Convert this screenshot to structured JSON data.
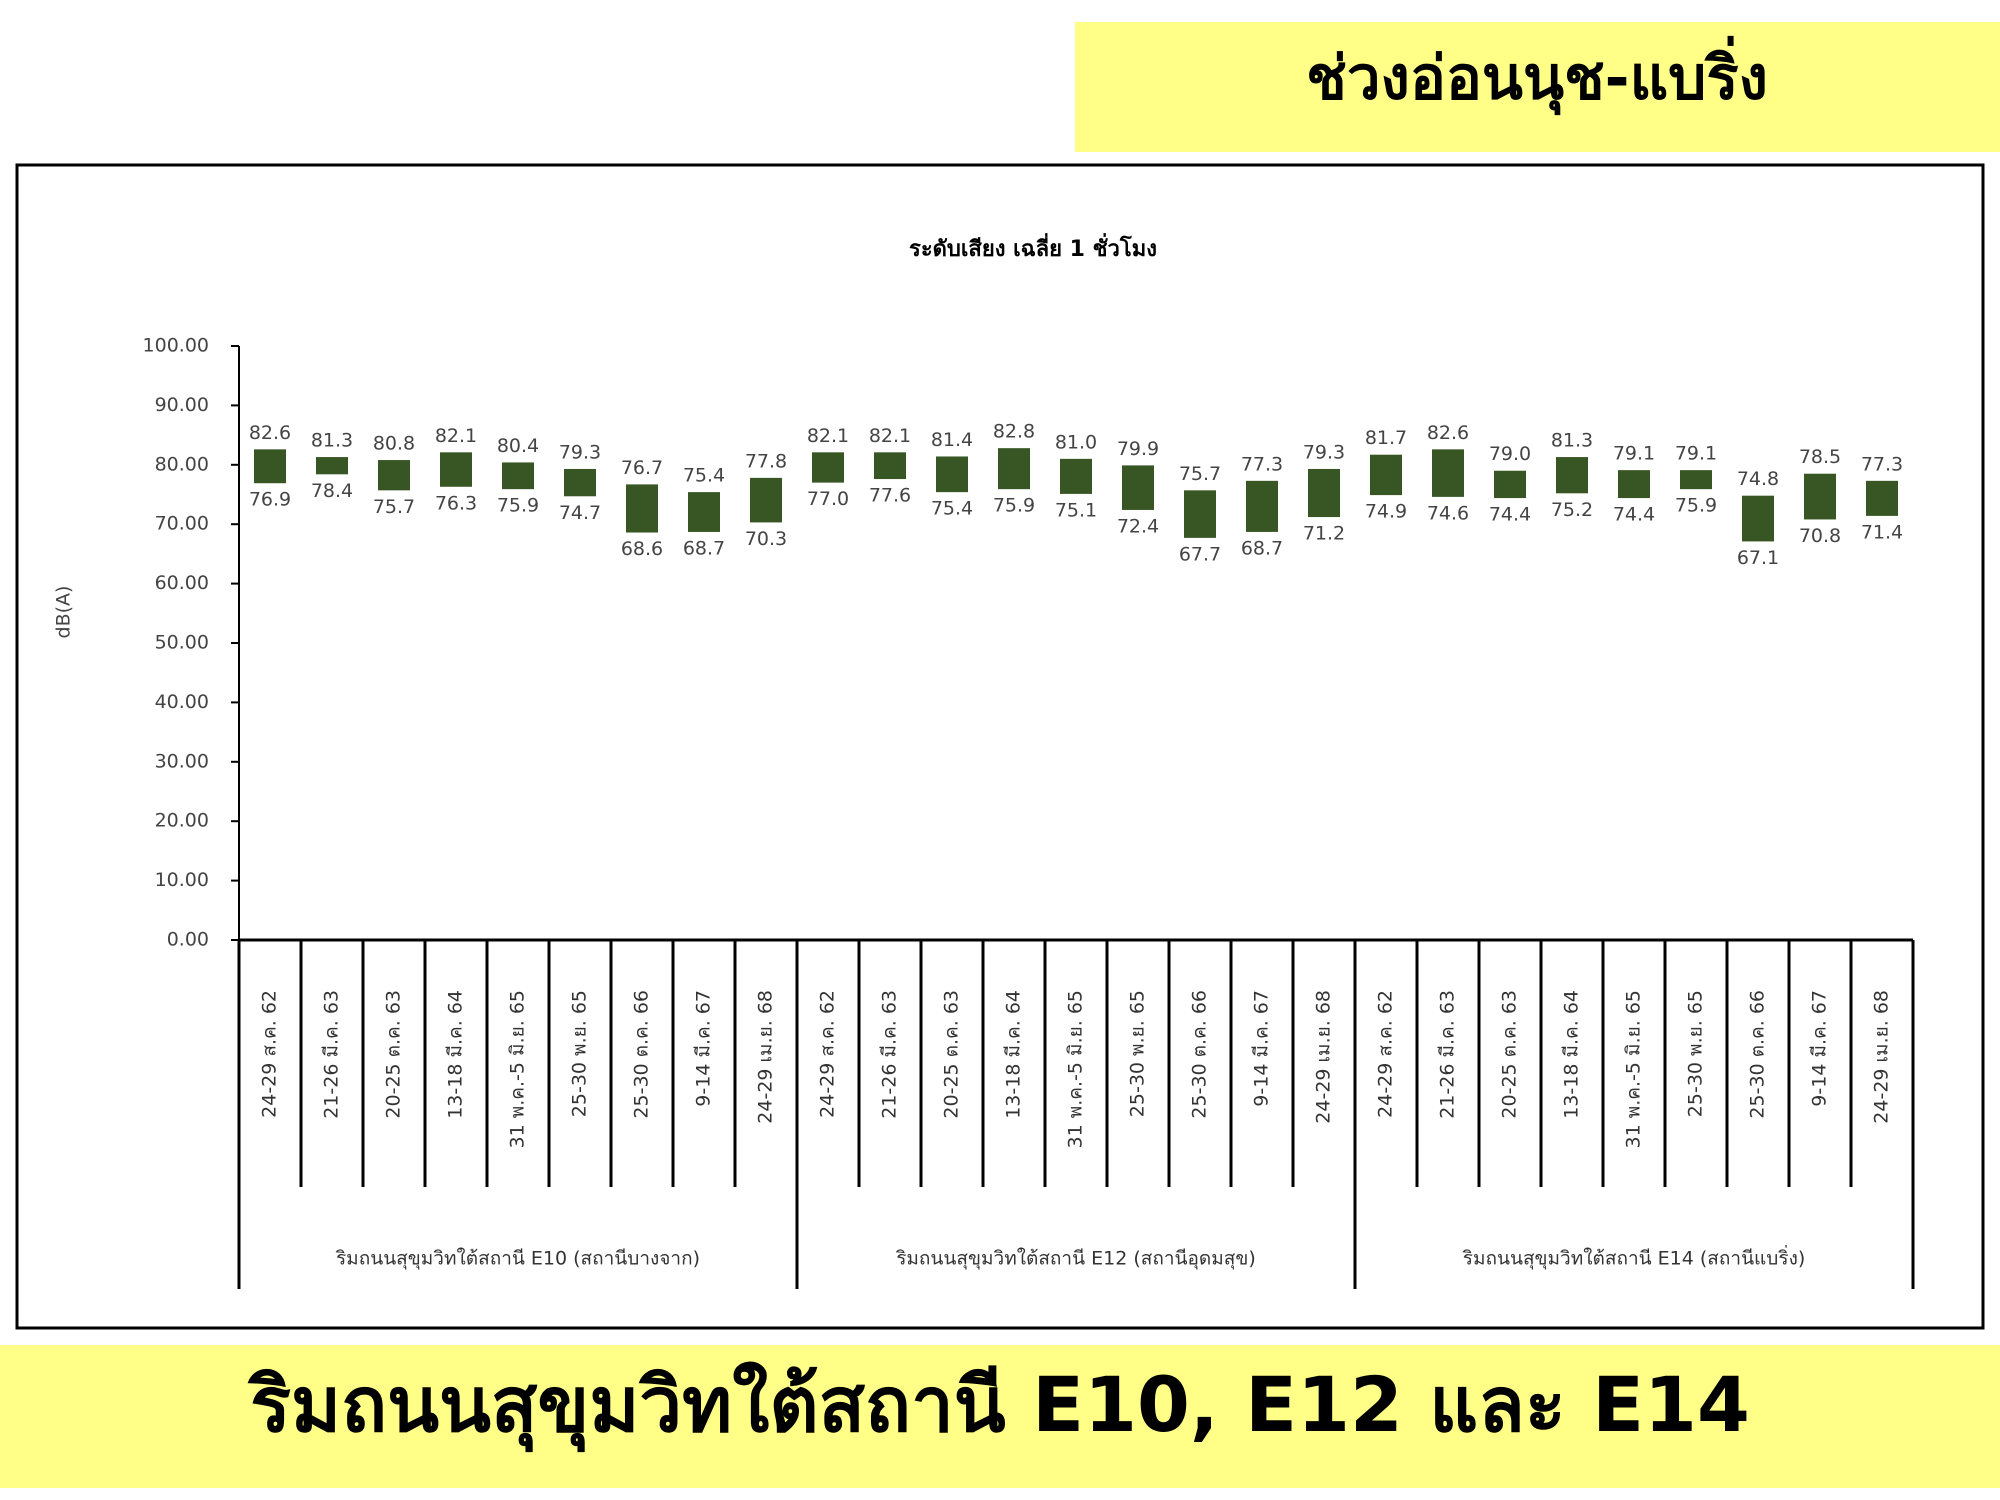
{
  "header": {
    "title": "ช่วงอ่อนนุช-แบริ่ง"
  },
  "footer": {
    "title": "ริมถนนสุขุมวิทใต้สถานี E10, E12 และ E14"
  },
  "chart_data": {
    "type": "range-bar",
    "title": "ระดับเสียง เฉลี่ย 1 ชั่วโมง",
    "y_label": "dB(A)",
    "color": "#375623",
    "categories": [
      "24-29 ส.ค. 62",
      "21-26 มี.ค. 63",
      "20-25 ต.ค. 63",
      "13-18 มี.ค. 64",
      "31 พ.ค.-5 มิ.ย. 65",
      "25-30 พ.ย. 65",
      "25-30 ต.ค. 66",
      "9-14 มี.ค. 67",
      "24-29 เม.ย. 68",
      "24-29 ส.ค. 62",
      "21-26 มี.ค. 63",
      "20-25 ต.ค. 63",
      "13-18 มี.ค. 64",
      "31 พ.ค.-5 มิ.ย. 65",
      "25-30 พ.ย. 65",
      "25-30 ต.ค. 66",
      "9-14 มี.ค. 67",
      "24-29 เม.ย. 68",
      "24-29 ส.ค. 62",
      "21-26 มี.ค. 63",
      "20-25 ต.ค. 63",
      "13-18 มี.ค. 64",
      "31 พ.ค.-5 มิ.ย. 65",
      "25-30 พ.ย. 65",
      "25-30 ต.ค. 66",
      "9-14 มี.ค. 67",
      "24-29 เม.ย. 68"
    ],
    "groups": [
      "ริมถนนสุขุมวิทใต้สถานี E10 (สถานีบางจาก)",
      "ริมถนนสุขุมวิทใต้สถานี E12 (สถานีอุดมสุข)",
      "ริมถนนสุขุมวิทใต้สถานี E14 (สถานีแบริ่ง)"
    ],
    "series": [
      {
        "values": [
          82.6,
          81.3,
          80.8,
          82.1,
          80.4,
          79.3,
          76.7,
          75.4,
          77.8,
          82.1,
          82.1,
          81.4,
          82.8,
          81.0,
          79.9,
          75.7,
          77.3,
          79.3,
          81.7,
          82.6,
          79.0,
          81.3,
          79.1,
          79.1,
          74.8,
          78.5,
          77.3
        ],
        "value_labels": [
          "82.6",
          "81.3",
          "80.8",
          "82.1",
          "80.4",
          "79.3",
          "76.7",
          "75.4",
          "77.8",
          "82.1",
          "82.1",
          "81.4",
          "82.8",
          "81.0",
          "79.9",
          "75.7",
          "77.3",
          "79.3",
          "81.7",
          "82.6",
          "79.0",
          "81.3",
          "79.1",
          "79.1",
          "74.8",
          "78.5",
          "77.3"
        ]
      },
      {
        "values": [
          76.9,
          78.4,
          75.7,
          76.3,
          75.9,
          74.7,
          68.6,
          68.7,
          70.3,
          77.0,
          77.6,
          75.4,
          75.9,
          75.1,
          72.4,
          67.7,
          68.7,
          71.2,
          74.9,
          74.6,
          74.4,
          75.2,
          74.4,
          75.9,
          67.1,
          70.8,
          71.4
        ],
        "value_labels": [
          "76.9",
          "78.4",
          "75.7",
          "76.3",
          "75.9",
          "74.7",
          "68.6",
          "68.7",
          "70.3",
          "77.0",
          "77.6",
          "75.4",
          "75.9",
          "75.1",
          "72.4",
          "67.7",
          "68.7",
          "71.2",
          "74.9",
          "74.6",
          "74.4",
          "75.2",
          "74.4",
          "75.9",
          "67.1",
          "70.8",
          "71.4"
        ]
      }
    ],
    "ylim": [
      0,
      100
    ],
    "yticks": [
      {
        "value": 0,
        "label": "0.00"
      },
      {
        "value": 10,
        "label": "10.00"
      },
      {
        "value": 20,
        "label": "20.00"
      },
      {
        "value": 30,
        "label": "30.00"
      },
      {
        "value": 40,
        "label": "40.00"
      },
      {
        "value": 50,
        "label": "50.00"
      },
      {
        "value": 60,
        "label": "60.00"
      },
      {
        "value": 70,
        "label": "70.00"
      },
      {
        "value": 80,
        "label": "80.00"
      },
      {
        "value": 90,
        "label": "90.00"
      },
      {
        "value": 100,
        "label": "100.00"
      }
    ]
  }
}
